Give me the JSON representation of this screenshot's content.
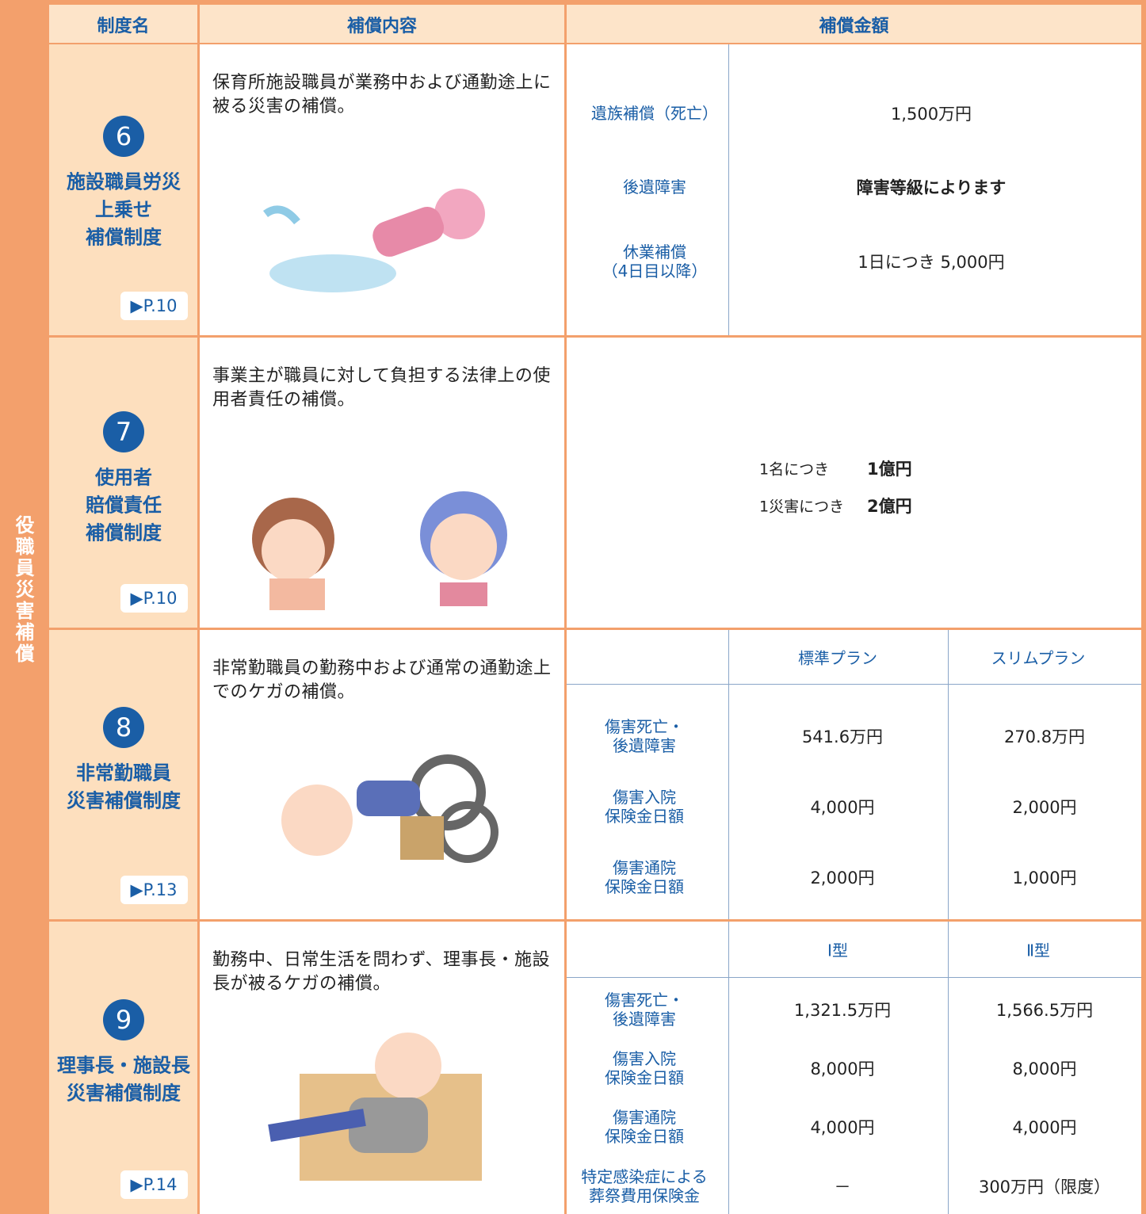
{
  "side_label": "役職員災害補償",
  "header": [
    "制度名",
    "補償内容",
    "補償金額"
  ],
  "rows": [
    {
      "number": "6",
      "name": [
        "施設職員労災",
        "上乗せ",
        "補償制度"
      ],
      "page": "▶P.10",
      "description": "保育所施設職員が業務中および通勤途上に被る災害の補償。",
      "amounts": [
        {
          "label": [
            "遺族補償（死亡）"
          ],
          "values": [
            "1,500万円"
          ]
        },
        {
          "label": [
            "後遺障害"
          ],
          "values": [
            "障害等級によります"
          ]
        },
        {
          "label": [
            "休業補償",
            "（4日目以降）"
          ],
          "values": [
            "1日につき 5,000円"
          ]
        }
      ]
    },
    {
      "number": "7",
      "name": [
        "使用者",
        "賠償責任",
        "補償制度"
      ],
      "page": "▶P.10",
      "description": "事業主が職員に対して負担する法律上の使用者責任の補償。",
      "amounts": [
        {
          "label": [
            "1名につき"
          ],
          "values": [
            "1億円"
          ]
        },
        {
          "label": [
            "1災害につき"
          ],
          "values": [
            "2億円"
          ]
        }
      ]
    },
    {
      "number": "8",
      "name": [
        "非常勤職員",
        "災害補償制度"
      ],
      "page": "▶P.13",
      "description": "非常勤職員の勤務中および通常の通勤途上でのケガの補償。",
      "plans": [
        "標準プラン",
        "スリムプラン"
      ],
      "amounts": [
        {
          "label": [
            "傷害死亡・",
            "後遺障害"
          ],
          "values": [
            "541.6万円",
            "270.8万円"
          ]
        },
        {
          "label": [
            "傷害入院",
            "保険金日額"
          ],
          "values": [
            "4,000円",
            "2,000円"
          ]
        },
        {
          "label": [
            "傷害通院",
            "保険金日額"
          ],
          "values": [
            "2,000円",
            "1,000円"
          ]
        }
      ]
    },
    {
      "number": "9",
      "name": [
        "理事長・施設長",
        "災害補償制度"
      ],
      "page": "▶P.14",
      "description": "勤務中、日常生活を問わず、理事長・施設長が被るケガの補償。",
      "plans": [
        "Ⅰ型",
        "Ⅱ型"
      ],
      "amounts": [
        {
          "label": [
            "傷害死亡・",
            "後遺障害"
          ],
          "values": [
            "1,321.5万円",
            "1,566.5万円"
          ]
        },
        {
          "label": [
            "傷害入院",
            "保険金日額"
          ],
          "values": [
            "8,000円",
            "8,000円"
          ]
        },
        {
          "label": [
            "傷害通院",
            "保険金日額"
          ],
          "values": [
            "4,000円",
            "4,000円"
          ]
        },
        {
          "label": [
            "特定感染症による",
            "葬祭費用保険金"
          ],
          "values": [
            "－",
            "300万円（限度）"
          ]
        }
      ]
    }
  ]
}
